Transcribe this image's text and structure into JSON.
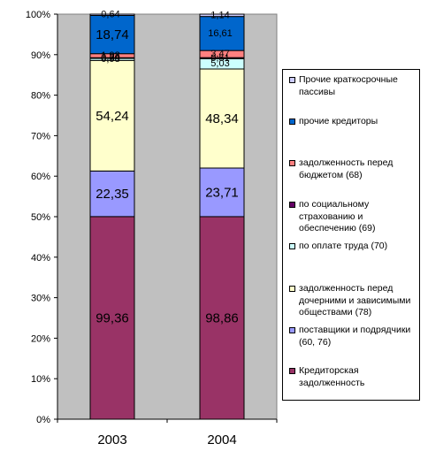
{
  "chart_data": {
    "type": "bar",
    "stacked": "percent",
    "categories": [
      "2003",
      "2004"
    ],
    "y_tick_labels": [
      "0%",
      "10%",
      "20%",
      "30%",
      "40%",
      "50%",
      "60%",
      "70%",
      "80%",
      "90%",
      "100%"
    ],
    "ylim": [
      0,
      100
    ],
    "grid": false,
    "legend_position": "right",
    "series": [
      {
        "name": "Кредиторская задолженность",
        "color": "#993366",
        "values": [
          99.36,
          98.86
        ],
        "labels": [
          "99,36",
          "98,86"
        ]
      },
      {
        "name": "поставщики и подрядчики (60, 76)",
        "color": "#9999ff",
        "values": [
          22.35,
          23.71
        ],
        "labels": [
          "22,35",
          "23,71"
        ]
      },
      {
        "name": "задолженность перед дочерними и зависимыми обществами (78)",
        "color": "#ffffcc",
        "values": [
          54.24,
          48.34
        ],
        "labels": [
          "54,24",
          "48,34"
        ]
      },
      {
        "name": "по оплате труда (70)",
        "color": "#ccffff",
        "values": [
          0.98,
          5.03
        ],
        "labels": [
          "0,98",
          "5,03"
        ]
      },
      {
        "name": "по социальному страхованию и обеспечению (69)",
        "color": "#660066",
        "values": [
          0.34,
          0.51
        ],
        "labels": [
          "0,34",
          "0,51"
        ]
      },
      {
        "name": "задолженность перед бюджетом (68)",
        "color": "#ff8080",
        "values": [
          1.98,
          3.47
        ],
        "labels": [
          "1,98",
          "3,47"
        ]
      },
      {
        "name": "прочие кредиторы",
        "color": "#0066cc",
        "values": [
          18.74,
          16.61
        ],
        "labels": [
          "18,74",
          "16,61"
        ]
      },
      {
        "name": "Прочие краткосрочные пассивы",
        "color": "#ccccff",
        "values": [
          0.64,
          1.14
        ],
        "labels": [
          "0,64",
          "1,14"
        ]
      }
    ]
  }
}
